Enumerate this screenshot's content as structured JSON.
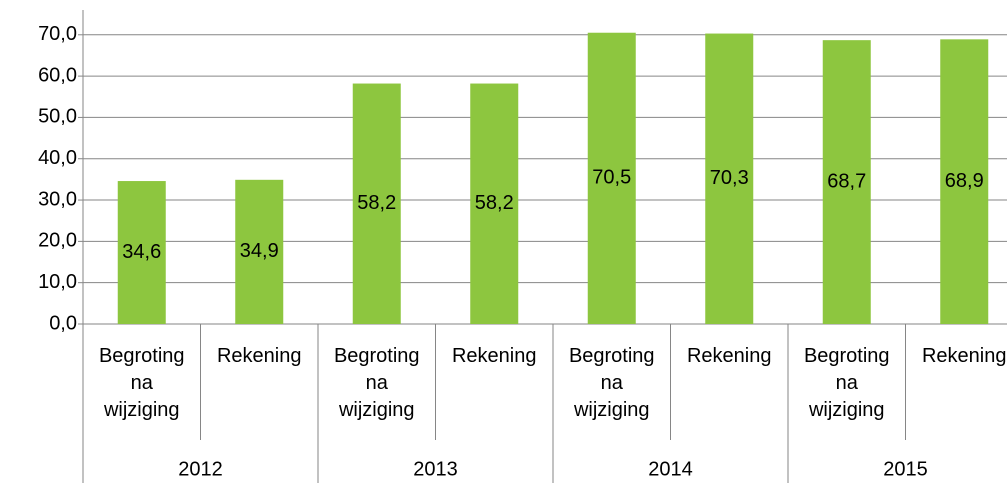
{
  "chart_data": {
    "type": "bar",
    "categories": [
      "Begroting na wijziging",
      "Rekening",
      "Begroting na wijziging",
      "Rekening",
      "Begroting na wijziging",
      "Rekening",
      "Begroting na wijziging",
      "Rekening"
    ],
    "groups": [
      "2012",
      "2013",
      "2014",
      "2015"
    ],
    "values": [
      34.6,
      34.9,
      58.2,
      58.2,
      70.5,
      70.3,
      68.7,
      68.9
    ],
    "value_labels": [
      "34,6",
      "34,9",
      "58,2",
      "58,2",
      "70,5",
      "70,3",
      "68,7",
      "68,9"
    ],
    "color": "#8dc63f",
    "ylim": [
      0,
      76
    ],
    "yticks": [
      {
        "value": 0,
        "label": "0,0"
      },
      {
        "value": 10,
        "label": "10,0"
      },
      {
        "value": 20,
        "label": "20,0"
      },
      {
        "value": 30,
        "label": "30,0"
      },
      {
        "value": 40,
        "label": "40,0"
      },
      {
        "value": 50,
        "label": "50,0"
      },
      {
        "value": 60,
        "label": "60,0"
      },
      {
        "value": 70,
        "label": "70,0"
      }
    ],
    "grid": true
  }
}
